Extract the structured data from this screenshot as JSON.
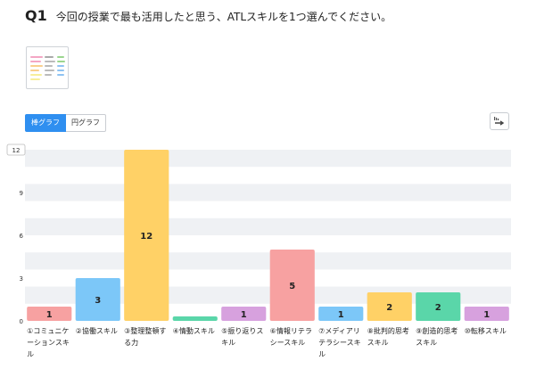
{
  "question": {
    "number": "Q1",
    "text": "今回の授業で最も活用したと思う、ATLスキルを1つ選んでください。"
  },
  "toggle": {
    "bar_label": "棒グラフ",
    "pie_label": "円グラフ"
  },
  "export_icon": "download-icon",
  "chart_data": {
    "type": "bar",
    "categories": [
      "①コミュニケーションスキル",
      "②協働スキル",
      "③整理整頓する力",
      "④情動スキル",
      "⑤振り返りスキル",
      "⑥情報リテラシースキル",
      "⑦メディアリテラシースキル",
      "⑧批判的思考スキル",
      "⑨創造的思考スキル",
      "⑩転移スキル"
    ],
    "values": [
      1,
      3,
      12,
      0,
      1,
      5,
      1,
      2,
      2,
      1
    ],
    "colors": [
      "#f7a1a1",
      "#7cc7f8",
      "#ffd166",
      "#5ad6a9",
      "#d7a1de",
      "#f7a1a1",
      "#7cc7f8",
      "#ffd166",
      "#5ad6a9",
      "#d7a1de"
    ],
    "yticks": [
      0,
      3,
      6,
      9,
      12
    ],
    "ylim": [
      0,
      12
    ],
    "grid": true
  }
}
